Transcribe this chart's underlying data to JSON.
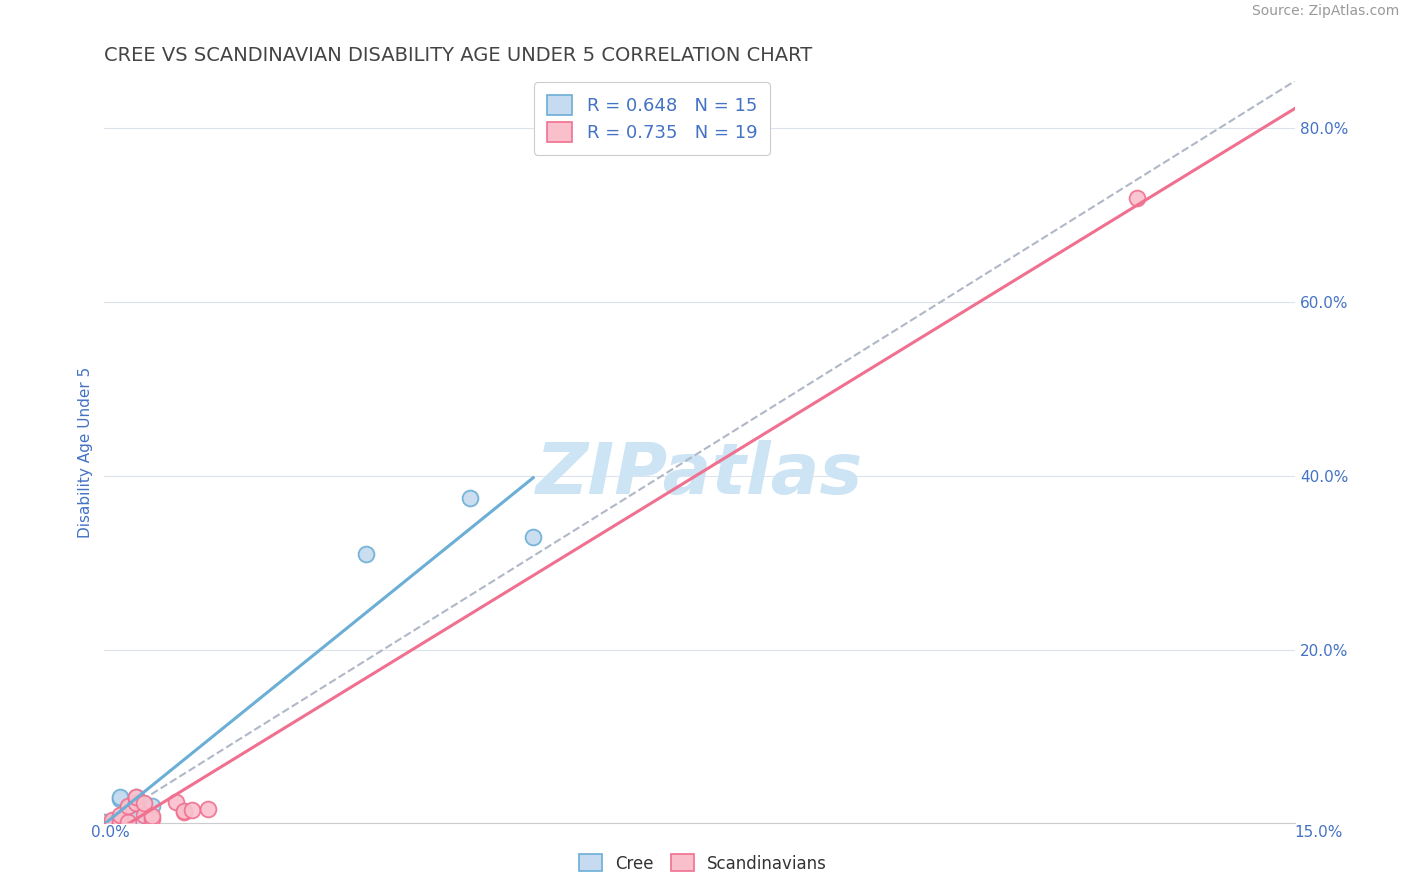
{
  "title": "CREE VS SCANDINAVIAN DISABILITY AGE UNDER 5 CORRELATION CHART",
  "source": "Source: ZipAtlas.com",
  "ylabel": "Disability Age Under 5",
  "cree_R": 0.648,
  "cree_N": 15,
  "scand_R": 0.735,
  "scand_N": 19,
  "cree_color": "#6baed6",
  "cree_fill": "#c6dbef",
  "scand_color": "#f07090",
  "scand_fill": "#f9c0cc",
  "diagonal_color": "#b0b8c8",
  "background_color": "#ffffff",
  "grid_color": "#dde3ec",
  "cree_x": [
    0.0,
    0.0,
    0.0,
    0.001,
    0.001,
    0.001,
    0.002,
    0.002,
    0.003,
    0.004,
    0.004,
    0.006,
    0.033,
    0.046,
    0.054
  ],
  "cree_y": [
    0.001,
    0.001,
    0.002,
    0.0,
    0.0,
    0.0,
    0.028,
    0.03,
    0.018,
    0.005,
    0.03,
    0.02,
    0.31,
    0.375,
    0.33
  ],
  "scand_x": [
    0.001,
    0.001,
    0.002,
    0.002,
    0.002,
    0.003,
    0.003,
    0.004,
    0.004,
    0.005,
    0.005,
    0.006,
    0.006,
    0.009,
    0.01,
    0.01,
    0.011,
    0.013,
    0.13
  ],
  "scand_y": [
    0.0,
    0.004,
    0.001,
    0.003,
    0.01,
    0.002,
    0.02,
    0.024,
    0.03,
    0.01,
    0.023,
    0.005,
    0.009,
    0.025,
    0.013,
    0.014,
    0.015,
    0.017,
    0.72
  ],
  "xlim": [
    0.0,
    0.15
  ],
  "ylim": [
    0.0,
    0.855
  ],
  "x_right_label": "15.0%",
  "x_left_label": "0.0%",
  "right_yticks": [
    0.2,
    0.4,
    0.6,
    0.8
  ],
  "right_ytick_labels": [
    "20.0%",
    "40.0%",
    "60.0%",
    "80.0%"
  ],
  "title_color": "#444444",
  "tick_color": "#4472c4",
  "watermark_color": "#cde4f5",
  "watermark_text": "ZIPatlas",
  "legend_label_color": "#4472c4"
}
